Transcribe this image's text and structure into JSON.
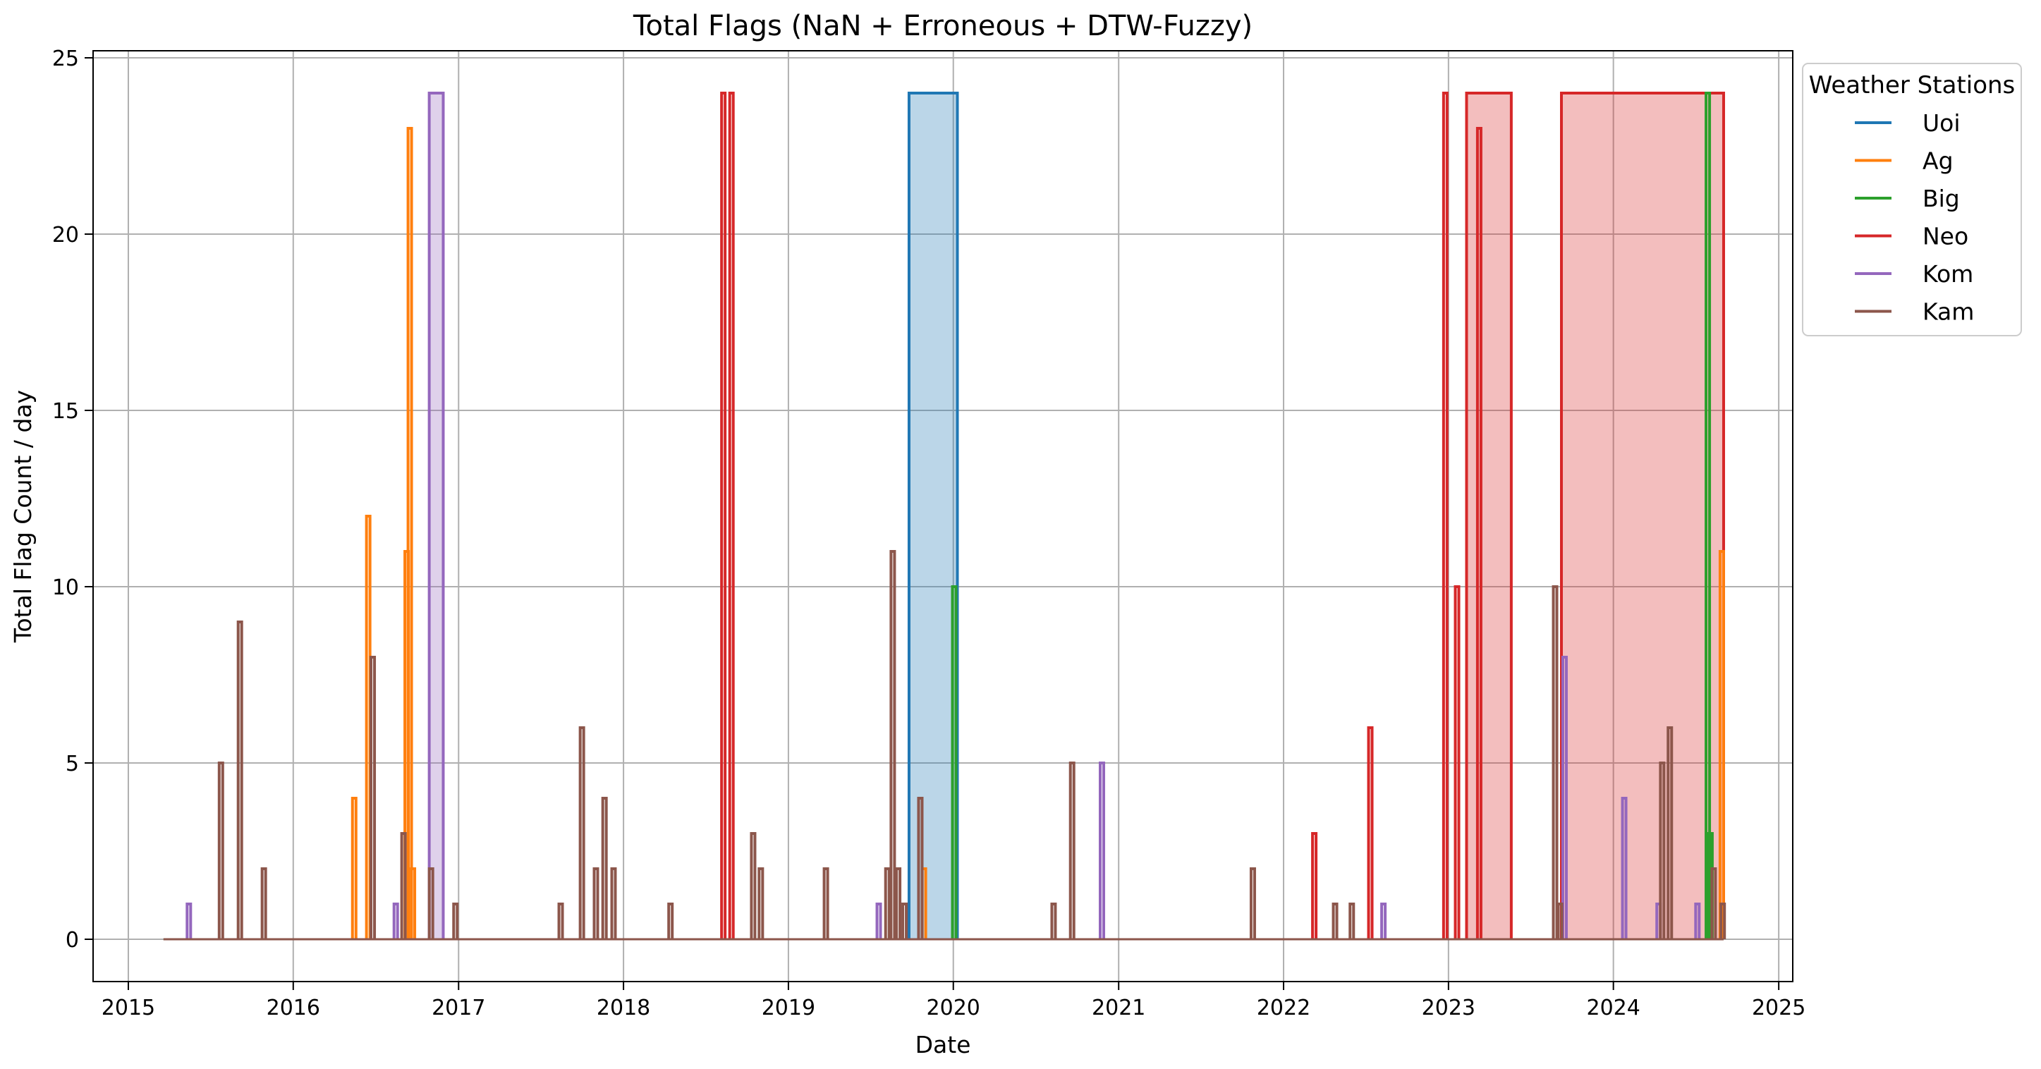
{
  "chart_data": {
    "type": "line",
    "title": "Total Flags (NaN + Erroneous + DTW-Fuzzy)",
    "xlabel": "Date",
    "ylabel": "Total Flag Count / day",
    "xlim": [
      "2014-10-15",
      "2025-02-01"
    ],
    "ylim": [
      -1.2,
      25.2
    ],
    "x_ticks": [
      "2015",
      "2016",
      "2017",
      "2018",
      "2019",
      "2020",
      "2021",
      "2022",
      "2023",
      "2024",
      "2025"
    ],
    "y_ticks": [
      0,
      5,
      10,
      15,
      20,
      25
    ],
    "grid": true,
    "legend": {
      "title": "Weather Stations",
      "placement": "outside-top-right"
    },
    "baseline": {
      "start": "2015-03-20",
      "end": "2024-09-01"
    },
    "series": [
      {
        "name": "Uoi",
        "color": "#1f77b4",
        "filled": [
          {
            "start": "2019-09-25",
            "end": "2020-01-10",
            "value": 24
          }
        ],
        "spikes": []
      },
      {
        "name": "Ag",
        "color": "#ff7f0e",
        "filled": [],
        "spikes": [
          {
            "date": "2016-05-15",
            "value": 4
          },
          {
            "date": "2016-06-15",
            "value": 12
          },
          {
            "date": "2016-09-08",
            "value": 11
          },
          {
            "date": "2016-09-15",
            "value": 23
          },
          {
            "date": "2016-09-22",
            "value": 2
          },
          {
            "date": "2019-10-28",
            "value": 2
          },
          {
            "date": "2024-08-28",
            "value": 11
          }
        ]
      },
      {
        "name": "Big",
        "color": "#2ca02c",
        "filled": [],
        "spikes": [
          {
            "date": "2020-01-03",
            "value": 10
          },
          {
            "date": "2024-07-28",
            "value": 24
          },
          {
            "date": "2024-08-03",
            "value": 3
          }
        ]
      },
      {
        "name": "Neo",
        "color": "#d62728",
        "filled": [
          {
            "start": "2023-02-10",
            "end": "2023-05-20",
            "value": 24
          },
          {
            "start": "2023-09-08",
            "end": "2024-09-01",
            "value": 24
          }
        ],
        "spikes": [
          {
            "date": "2018-08-10",
            "value": 24
          },
          {
            "date": "2018-08-28",
            "value": 24
          },
          {
            "date": "2022-03-10",
            "value": 3
          },
          {
            "date": "2022-07-12",
            "value": 6
          },
          {
            "date": "2022-12-25",
            "value": 24
          },
          {
            "date": "2023-01-20",
            "value": 10
          },
          {
            "date": "2023-03-10",
            "value": 23
          }
        ]
      },
      {
        "name": "Kom",
        "color": "#9467bd",
        "filled": [
          {
            "start": "2016-10-28",
            "end": "2016-11-28",
            "value": 24
          }
        ],
        "spikes": [
          {
            "date": "2015-05-15",
            "value": 1
          },
          {
            "date": "2016-08-15",
            "value": 1
          },
          {
            "date": "2019-07-20",
            "value": 1
          },
          {
            "date": "2020-11-25",
            "value": 5
          },
          {
            "date": "2022-08-10",
            "value": 1
          },
          {
            "date": "2023-09-15",
            "value": 8
          },
          {
            "date": "2024-01-25",
            "value": 4
          },
          {
            "date": "2024-04-10",
            "value": 1
          },
          {
            "date": "2024-07-05",
            "value": 1
          }
        ]
      },
      {
        "name": "Kam",
        "color": "#8c564b",
        "filled": [],
        "spikes": [
          {
            "date": "2015-07-25",
            "value": 5
          },
          {
            "date": "2015-09-05",
            "value": 9
          },
          {
            "date": "2015-10-28",
            "value": 2
          },
          {
            "date": "2016-06-25",
            "value": 8
          },
          {
            "date": "2016-09-01",
            "value": 3
          },
          {
            "date": "2016-11-01",
            "value": 2
          },
          {
            "date": "2016-12-25",
            "value": 1
          },
          {
            "date": "2017-08-15",
            "value": 1
          },
          {
            "date": "2017-10-01",
            "value": 6
          },
          {
            "date": "2017-11-01",
            "value": 2
          },
          {
            "date": "2017-11-20",
            "value": 4
          },
          {
            "date": "2017-12-10",
            "value": 2
          },
          {
            "date": "2018-04-15",
            "value": 1
          },
          {
            "date": "2018-10-15",
            "value": 3
          },
          {
            "date": "2018-11-01",
            "value": 2
          },
          {
            "date": "2019-03-25",
            "value": 2
          },
          {
            "date": "2019-08-08",
            "value": 2
          },
          {
            "date": "2019-08-20",
            "value": 11
          },
          {
            "date": "2019-09-01",
            "value": 2
          },
          {
            "date": "2019-09-15",
            "value": 1
          },
          {
            "date": "2019-10-20",
            "value": 4
          },
          {
            "date": "2020-08-10",
            "value": 1
          },
          {
            "date": "2020-09-20",
            "value": 5
          },
          {
            "date": "2021-10-25",
            "value": 2
          },
          {
            "date": "2022-04-25",
            "value": 1
          },
          {
            "date": "2022-06-01",
            "value": 1
          },
          {
            "date": "2023-08-25",
            "value": 10
          },
          {
            "date": "2023-09-05",
            "value": 1
          },
          {
            "date": "2024-04-18",
            "value": 5
          },
          {
            "date": "2024-05-05",
            "value": 6
          },
          {
            "date": "2024-08-10",
            "value": 2
          },
          {
            "date": "2024-08-30",
            "value": 1
          }
        ]
      }
    ]
  }
}
